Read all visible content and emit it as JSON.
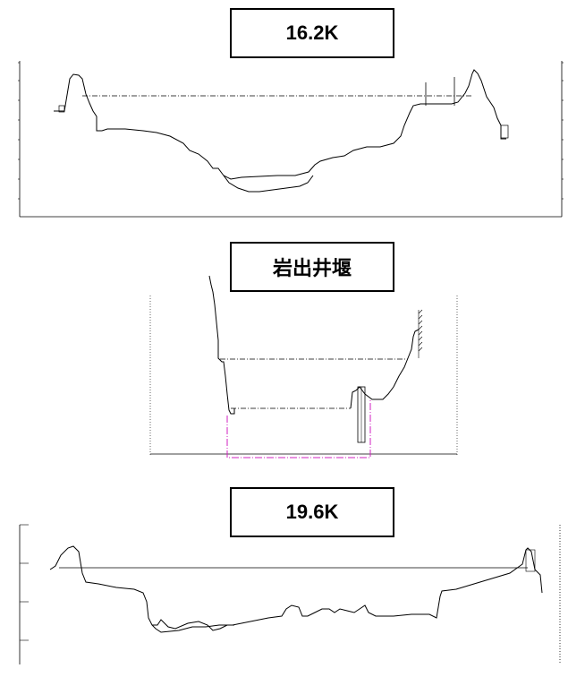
{
  "sections": [
    {
      "title": "16.2K"
    },
    {
      "title": "岩出井堰"
    },
    {
      "title": "19.6K"
    }
  ],
  "colors": {
    "line": "#000000",
    "water": "#333333",
    "magenta": "#d020c0",
    "background": "#ffffff"
  }
}
